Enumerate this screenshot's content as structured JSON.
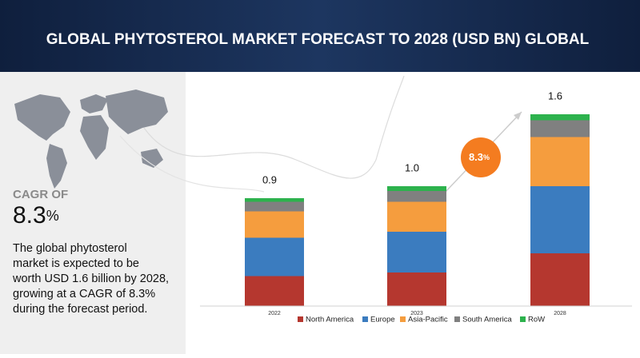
{
  "chart_data": {
    "type": "stacked_bar",
    "title": "GLOBAL PHYTOSTEROL MARKET FORECAST TO 2028 (USD BN) GLOBAL",
    "categories": [
      "2022",
      "2023",
      "2028"
    ],
    "series": [
      {
        "name": "North America",
        "color": "#b5372f",
        "values": [
          0.25,
          0.28,
          0.44
        ]
      },
      {
        "name": "Europe",
        "color": "#3b7cbf",
        "values": [
          0.32,
          0.34,
          0.56
        ]
      },
      {
        "name": "Asia-Pacific",
        "color": "#f59d3e",
        "values": [
          0.22,
          0.25,
          0.41
        ]
      },
      {
        "name": "South America",
        "color": "#808080",
        "values": [
          0.08,
          0.09,
          0.14
        ]
      },
      {
        "name": "RoW",
        "color": "#2db24d",
        "values": [
          0.03,
          0.04,
          0.05
        ]
      }
    ],
    "totals": {
      "values": [
        0.9,
        1.0,
        1.6
      ],
      "value_labels": [
        "0.9",
        "1.0",
        "1.6"
      ]
    },
    "cagr": {
      "label": "CAGR OF",
      "value": 8.3,
      "unit": "%"
    },
    "description": [
      "The global phytosterol",
      "market is expected to be",
      "worth USD 1.6 billion by 2028,",
      "growing at a CAGR of 8.3%",
      "during the forecast period."
    ]
  }
}
